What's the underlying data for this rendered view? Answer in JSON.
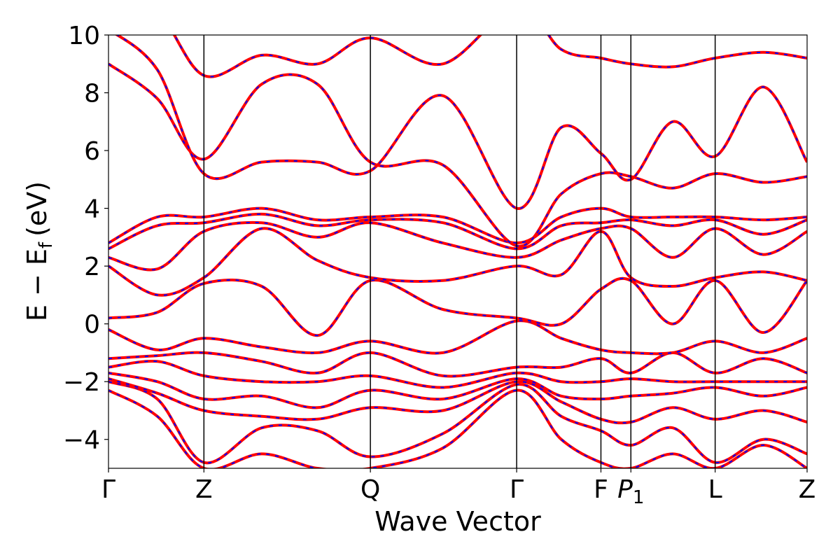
{
  "chart_data": {
    "type": "line",
    "xlabel": "Wave Vector",
    "ylabel": "E − E",
    "ylabel_sub": "f",
    "ylabel_unit": "(eV)",
    "ylim": [
      -5,
      10
    ],
    "yticks": [
      {
        "value": -4,
        "label": "−4"
      },
      {
        "value": -2,
        "label": "−2"
      },
      {
        "value": 0,
        "label": "0"
      },
      {
        "value": 2,
        "label": "2"
      },
      {
        "value": 4,
        "label": "4"
      },
      {
        "value": 6,
        "label": "6"
      },
      {
        "value": 8,
        "label": "8"
      },
      {
        "value": 10,
        "label": "10"
      }
    ],
    "kpoints": [
      {
        "name": "Γ",
        "sub": ""
      },
      {
        "name": "Z",
        "sub": ""
      },
      {
        "name": "Q",
        "sub": ""
      },
      {
        "name": "Γ",
        "sub": ""
      },
      {
        "name": "F",
        "sub": ""
      },
      {
        "name": "P",
        "sub": "1"
      },
      {
        "name": "L",
        "sub": ""
      },
      {
        "name": "Z",
        "sub": ""
      }
    ],
    "kpath_positions": [
      0,
      1.37,
      3.76,
      5.86,
      7.07,
      7.5,
      8.71,
      10.03
    ],
    "series_colors": {
      "dft": "#ff0000",
      "wannier": "#0000ff"
    },
    "bands": [
      [
        [
          0,
          -2.3
        ],
        [
          0.7,
          -3.2
        ],
        [
          1.37,
          -5.0
        ],
        [
          2.2,
          -4.5
        ],
        [
          3.0,
          -5.0
        ],
        [
          3.76,
          -5.0
        ],
        [
          4.8,
          -4.3
        ],
        [
          5.86,
          -2.3
        ],
        [
          6.5,
          -4.0
        ],
        [
          7.07,
          -4.8
        ],
        [
          7.5,
          -5.0
        ],
        [
          8.1,
          -4.5
        ],
        [
          8.71,
          -5.0
        ],
        [
          9.4,
          -4.2
        ],
        [
          10.03,
          -5.0
        ]
      ],
      [
        [
          0,
          -2.0
        ],
        [
          0.7,
          -2.6
        ],
        [
          1.37,
          -4.8
        ],
        [
          2.2,
          -3.6
        ],
        [
          3.0,
          -3.7
        ],
        [
          3.76,
          -4.6
        ],
        [
          4.8,
          -3.8
        ],
        [
          5.86,
          -2.1
        ],
        [
          6.5,
          -3.2
        ],
        [
          7.07,
          -3.7
        ],
        [
          7.5,
          -4.2
        ],
        [
          8.1,
          -3.6
        ],
        [
          8.71,
          -4.8
        ],
        [
          9.4,
          -4.0
        ],
        [
          10.03,
          -4.5
        ]
      ],
      [
        [
          0,
          -1.9
        ],
        [
          0.7,
          -2.4
        ],
        [
          1.37,
          -3.0
        ],
        [
          2.2,
          -3.2
        ],
        [
          3.0,
          -3.3
        ],
        [
          3.76,
          -2.9
        ],
        [
          4.8,
          -3.0
        ],
        [
          5.86,
          -2.0
        ],
        [
          6.5,
          -2.7
        ],
        [
          7.07,
          -3.3
        ],
        [
          7.5,
          -3.4
        ],
        [
          8.1,
          -2.9
        ],
        [
          8.71,
          -3.3
        ],
        [
          9.4,
          -3.0
        ],
        [
          10.03,
          -3.4
        ]
      ],
      [
        [
          0,
          -1.7
        ],
        [
          0.7,
          -2.0
        ],
        [
          1.37,
          -2.6
        ],
        [
          2.2,
          -2.5
        ],
        [
          3.0,
          -2.9
        ],
        [
          3.76,
          -2.3
        ],
        [
          4.8,
          -2.6
        ],
        [
          5.86,
          -1.9
        ],
        [
          6.5,
          -2.5
        ],
        [
          7.07,
          -2.6
        ],
        [
          7.5,
          -2.5
        ],
        [
          8.1,
          -2.4
        ],
        [
          8.71,
          -2.2
        ],
        [
          9.4,
          -2.5
        ],
        [
          10.03,
          -2.2
        ]
      ],
      [
        [
          0,
          -1.5
        ],
        [
          0.7,
          -1.3
        ],
        [
          1.37,
          -1.8
        ],
        [
          2.2,
          -2.0
        ],
        [
          3.0,
          -2.0
        ],
        [
          3.76,
          -1.8
        ],
        [
          4.8,
          -2.2
        ],
        [
          5.86,
          -1.7
        ],
        [
          6.5,
          -2.0
        ],
        [
          7.07,
          -2.0
        ],
        [
          7.5,
          -1.9
        ],
        [
          8.1,
          -2.0
        ],
        [
          8.71,
          -2.0
        ],
        [
          9.4,
          -2.0
        ],
        [
          10.03,
          -2.0
        ]
      ],
      [
        [
          0,
          -1.2
        ],
        [
          0.7,
          -1.1
        ],
        [
          1.37,
          -1.0
        ],
        [
          2.2,
          -1.3
        ],
        [
          3.0,
          -1.7
        ],
        [
          3.76,
          -1.0
        ],
        [
          4.8,
          -1.8
        ],
        [
          5.86,
          -1.5
        ],
        [
          6.5,
          -1.5
        ],
        [
          7.07,
          -1.2
        ],
        [
          7.5,
          -1.7
        ],
        [
          8.1,
          -1.0
        ],
        [
          8.71,
          -1.7
        ],
        [
          9.4,
          -1.2
        ],
        [
          10.03,
          -1.7
        ]
      ],
      [
        [
          0,
          -0.2
        ],
        [
          0.7,
          -0.9
        ],
        [
          1.37,
          -0.5
        ],
        [
          2.2,
          -0.8
        ],
        [
          3.0,
          -1.0
        ],
        [
          3.76,
          -0.6
        ],
        [
          4.8,
          -1.0
        ],
        [
          5.86,
          0.1
        ],
        [
          6.5,
          -0.5
        ],
        [
          7.07,
          -0.9
        ],
        [
          7.5,
          -1.0
        ],
        [
          8.1,
          -1.0
        ],
        [
          8.71,
          -0.6
        ],
        [
          9.4,
          -1.0
        ],
        [
          10.03,
          -0.5
        ]
      ],
      [
        [
          0,
          0.2
        ],
        [
          0.7,
          0.4
        ],
        [
          1.37,
          1.4
        ],
        [
          2.2,
          1.3
        ],
        [
          3.0,
          -0.4
        ],
        [
          3.76,
          1.5
        ],
        [
          4.8,
          0.5
        ],
        [
          5.86,
          0.2
        ],
        [
          6.5,
          0.0
        ],
        [
          7.07,
          1.2
        ],
        [
          7.5,
          1.5
        ],
        [
          8.1,
          0.0
        ],
        [
          8.71,
          1.5
        ],
        [
          9.4,
          -0.3
        ],
        [
          10.03,
          1.5
        ]
      ],
      [
        [
          0,
          2.0
        ],
        [
          0.7,
          1.0
        ],
        [
          1.37,
          1.6
        ],
        [
          2.2,
          3.3
        ],
        [
          3.0,
          2.2
        ],
        [
          3.76,
          1.6
        ],
        [
          4.8,
          1.5
        ],
        [
          5.86,
          2.0
        ],
        [
          6.5,
          1.7
        ],
        [
          7.07,
          3.2
        ],
        [
          7.5,
          1.6
        ],
        [
          8.1,
          1.3
        ],
        [
          8.71,
          1.6
        ],
        [
          9.4,
          1.8
        ],
        [
          10.03,
          1.5
        ]
      ],
      [
        [
          0,
          2.3
        ],
        [
          0.7,
          1.9
        ],
        [
          1.37,
          3.2
        ],
        [
          2.2,
          3.5
        ],
        [
          3.0,
          3.0
        ],
        [
          3.76,
          3.5
        ],
        [
          4.8,
          2.8
        ],
        [
          5.86,
          2.3
        ],
        [
          6.5,
          2.9
        ],
        [
          7.07,
          3.3
        ],
        [
          7.5,
          3.3
        ],
        [
          8.1,
          2.3
        ],
        [
          8.71,
          3.3
        ],
        [
          9.4,
          2.4
        ],
        [
          10.03,
          3.2
        ]
      ],
      [
        [
          0,
          2.6
        ],
        [
          0.7,
          3.4
        ],
        [
          1.37,
          3.5
        ],
        [
          2.2,
          3.8
        ],
        [
          3.0,
          3.4
        ],
        [
          3.76,
          3.6
        ],
        [
          4.8,
          3.5
        ],
        [
          5.86,
          2.6
        ],
        [
          6.5,
          3.4
        ],
        [
          7.07,
          3.5
        ],
        [
          7.5,
          3.6
        ],
        [
          8.1,
          3.4
        ],
        [
          8.71,
          3.6
        ],
        [
          9.4,
          3.1
        ],
        [
          10.03,
          3.6
        ]
      ],
      [
        [
          0,
          2.8
        ],
        [
          0.7,
          3.7
        ],
        [
          1.37,
          3.7
        ],
        [
          2.2,
          4.0
        ],
        [
          3.0,
          3.6
        ],
        [
          3.76,
          3.7
        ],
        [
          4.8,
          3.7
        ],
        [
          5.86,
          2.8
        ],
        [
          6.5,
          3.7
        ],
        [
          7.07,
          4.0
        ],
        [
          7.5,
          3.7
        ],
        [
          8.1,
          3.7
        ],
        [
          8.71,
          3.7
        ],
        [
          9.4,
          3.6
        ],
        [
          10.03,
          3.7
        ]
      ],
      [
        [
          0,
          9.0
        ],
        [
          0.7,
          7.8
        ],
        [
          1.37,
          5.7
        ],
        [
          2.2,
          8.3
        ],
        [
          3.0,
          8.3
        ],
        [
          3.76,
          5.6
        ],
        [
          4.8,
          5.5
        ],
        [
          5.86,
          2.7
        ],
        [
          6.5,
          4.5
        ],
        [
          7.07,
          5.2
        ],
        [
          7.5,
          5.1
        ],
        [
          8.1,
          4.7
        ],
        [
          8.71,
          5.2
        ],
        [
          9.4,
          4.9
        ],
        [
          10.03,
          5.1
        ]
      ],
      [
        [
          0,
          10.2
        ],
        [
          0.7,
          8.8
        ],
        [
          1.37,
          5.2
        ],
        [
          2.2,
          5.6
        ],
        [
          3.0,
          5.6
        ],
        [
          3.76,
          5.3
        ],
        [
          4.8,
          7.9
        ],
        [
          5.86,
          4.0
        ],
        [
          6.5,
          6.8
        ],
        [
          7.07,
          5.9
        ],
        [
          7.5,
          5.0
        ],
        [
          8.1,
          7.0
        ],
        [
          8.71,
          5.8
        ],
        [
          9.4,
          8.2
        ],
        [
          10.03,
          5.6
        ]
      ],
      [
        [
          0,
          11.0
        ],
        [
          0.7,
          10.8
        ],
        [
          1.37,
          8.6
        ],
        [
          2.2,
          9.3
        ],
        [
          3.0,
          9.0
        ],
        [
          3.76,
          9.9
        ],
        [
          4.8,
          9.0
        ],
        [
          5.86,
          11.0
        ],
        [
          6.5,
          9.5
        ],
        [
          7.07,
          9.2
        ],
        [
          7.5,
          9.0
        ],
        [
          8.1,
          8.9
        ],
        [
          8.71,
          9.2
        ],
        [
          9.4,
          9.4
        ],
        [
          10.03,
          9.2
        ]
      ]
    ]
  }
}
